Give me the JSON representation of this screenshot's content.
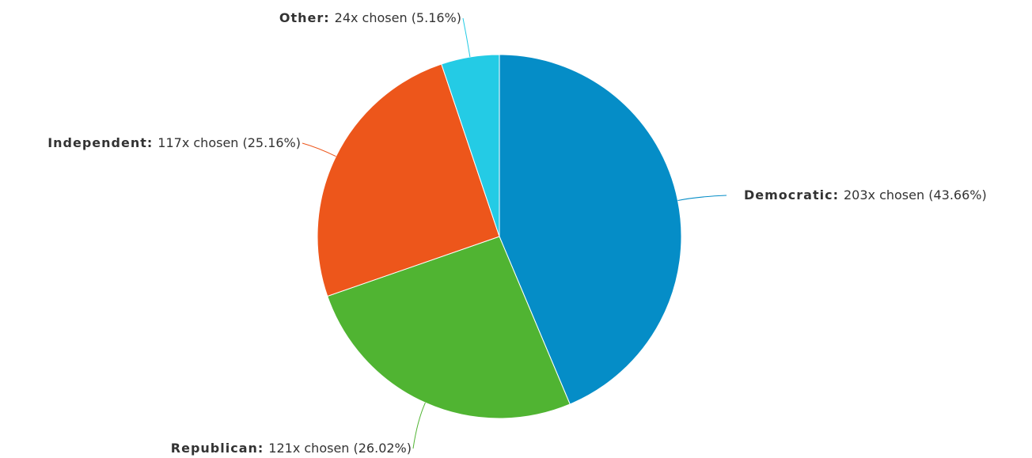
{
  "chart_data": {
    "type": "pie",
    "categories": [
      "Democratic:",
      "Republican:",
      "Independent:",
      "Other:"
    ],
    "values": [
      43.66,
      26.02,
      25.16,
      5.16
    ],
    "value_labels": [
      "203x chosen (43.66%)",
      "121x chosen (26.02%)",
      "117x chosen (25.16%)",
      "24x chosen (5.16%)"
    ],
    "colors": [
      "#058dc7",
      "#50b432",
      "#ed561b",
      "#24cbe5"
    ]
  }
}
